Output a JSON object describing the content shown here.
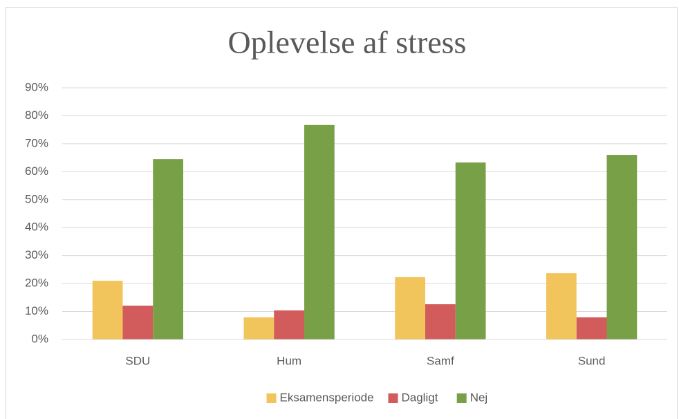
{
  "chart_data": {
    "type": "bar",
    "title": "Oplevelse af stress",
    "categories": [
      "SDU",
      "Hum",
      "Samf",
      "Sund"
    ],
    "series": [
      {
        "name": "Eksamensperiode",
        "color": "#f2c55c",
        "values": [
          21.0,
          7.9,
          22.3,
          23.7
        ]
      },
      {
        "name": "Dagligt",
        "color": "#d25b5b",
        "values": [
          12.1,
          10.4,
          12.6,
          7.9
        ]
      },
      {
        "name": "Nej",
        "color": "#78a046",
        "values": [
          64.5,
          76.7,
          63.3,
          66.0
        ]
      }
    ],
    "ylim": [
      0,
      90
    ],
    "yticks": [
      {
        "value": 0,
        "label": "0%"
      },
      {
        "value": 10,
        "label": "10%"
      },
      {
        "value": 20,
        "label": "20%"
      },
      {
        "value": 30,
        "label": "30%"
      },
      {
        "value": 40,
        "label": "40%"
      },
      {
        "value": 50,
        "label": "50%"
      },
      {
        "value": 60,
        "label": "60%"
      },
      {
        "value": 70,
        "label": "70%"
      },
      {
        "value": 80,
        "label": "80%"
      },
      {
        "value": 90,
        "label": "90%"
      }
    ],
    "grid": true,
    "legend": "bottom"
  }
}
